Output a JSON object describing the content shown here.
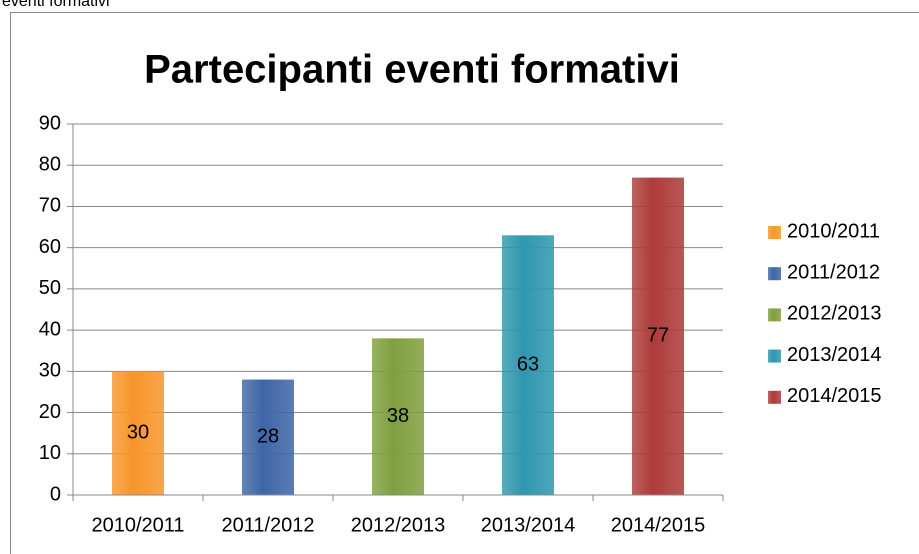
{
  "caption": "eventi formativi",
  "chart_data": {
    "type": "bar",
    "title": "Partecipanti eventi formativi",
    "categories": [
      "2010/2011",
      "2011/2012",
      "2012/2013",
      "2013/2014",
      "2014/2015"
    ],
    "values": [
      30,
      28,
      38,
      63,
      77
    ],
    "colors": [
      "#f7962b",
      "#3e66a6",
      "#7f9f3f",
      "#2f97ae",
      "#ad3b39"
    ],
    "ylim": [
      0,
      90
    ],
    "yticks": [
      0,
      10,
      20,
      30,
      40,
      50,
      60,
      70,
      80,
      90
    ],
    "grid": true,
    "legend": "right"
  }
}
